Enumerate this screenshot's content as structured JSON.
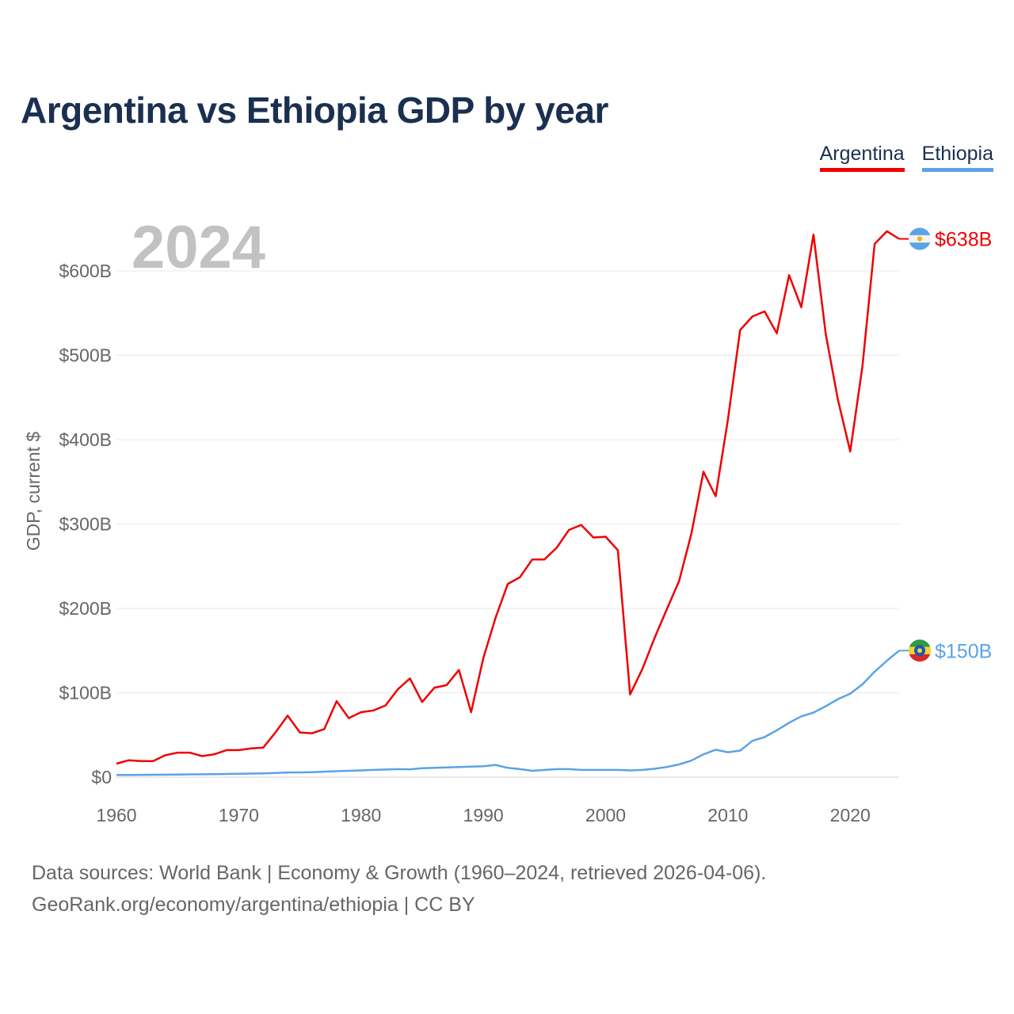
{
  "title": "Argentina vs Ethiopia GDP by year",
  "footer": {
    "line1": "Data sources: World Bank | Economy & Growth (1960–2024, retrieved 2026-04-06).",
    "line2": "GeoRank.org/economy/argentina/ethiopia | CC BY"
  },
  "chart_data": {
    "type": "line",
    "title": "Argentina vs Ethiopia GDP by year",
    "xlabel": "",
    "ylabel": "GDP, current $",
    "year_label": "2024",
    "xlim": [
      1960,
      2024
    ],
    "ylim": [
      0,
      600
    ],
    "y_unit": "billion USD",
    "x_ticks": [
      1960,
      1970,
      1980,
      1990,
      2000,
      2010,
      2020
    ],
    "x_tick_labels": [
      "1960",
      "1970",
      "1980",
      "1990",
      "2000",
      "2010",
      "2020"
    ],
    "y_ticks": [
      0,
      100,
      200,
      300,
      400,
      500,
      600
    ],
    "y_tick_labels": [
      "$0",
      "$100B",
      "$200B",
      "$300B",
      "$400B",
      "$500B",
      "$600B"
    ],
    "grid": true,
    "legend_position": "top-right",
    "x": [
      1960,
      1961,
      1962,
      1963,
      1964,
      1965,
      1966,
      1967,
      1968,
      1969,
      1970,
      1971,
      1972,
      1973,
      1974,
      1975,
      1976,
      1977,
      1978,
      1979,
      1980,
      1981,
      1982,
      1983,
      1984,
      1985,
      1986,
      1987,
      1988,
      1989,
      1990,
      1991,
      1992,
      1993,
      1994,
      1995,
      1996,
      1997,
      1998,
      1999,
      2000,
      2001,
      2002,
      2003,
      2004,
      2005,
      2006,
      2007,
      2008,
      2009,
      2010,
      2011,
      2012,
      2013,
      2014,
      2015,
      2016,
      2017,
      2018,
      2019,
      2020,
      2021,
      2022,
      2023,
      2024
    ],
    "series": [
      {
        "name": "Argentina",
        "color": "#ee0000",
        "end_label": "$638B",
        "flag": "argentina-flag",
        "values": [
          16,
          20,
          19,
          19,
          26,
          29,
          29,
          25,
          27,
          32,
          32,
          34,
          35,
          53,
          73,
          53,
          52,
          57,
          90,
          70,
          77,
          79,
          85,
          104,
          117,
          89,
          106,
          109,
          127,
          77,
          141,
          189,
          229,
          237,
          258,
          258,
          272,
          293,
          299,
          284,
          285,
          269,
          98,
          128,
          165,
          199,
          232,
          288,
          362,
          333,
          424,
          530,
          546,
          552,
          526,
          595,
          557,
          643,
          525,
          447,
          386,
          487,
          632,
          647,
          638
        ]
      },
      {
        "name": "Ethiopia",
        "color": "#5ba3e6",
        "end_label": "$150B",
        "flag": "ethiopia-flag",
        "values": [
          2.5,
          2.6,
          2.7,
          2.8,
          2.9,
          3.1,
          3.3,
          3.4,
          3.6,
          3.8,
          4.0,
          4.2,
          4.5,
          5.0,
          5.5,
          5.6,
          5.8,
          6.5,
          7.0,
          7.5,
          8.0,
          8.5,
          9.0,
          9.5,
          9.3,
          10.5,
          11.0,
          11.5,
          12.0,
          12.5,
          13.0,
          14.5,
          11.0,
          9.5,
          7.5,
          8.5,
          9.5,
          9.5,
          8.5,
          8.5,
          8.5,
          8.5,
          8.0,
          8.5,
          10.0,
          12.0,
          15.0,
          19.5,
          27.0,
          32.5,
          29.5,
          31.5,
          43.0,
          47.5,
          55.5,
          64.5,
          72.0,
          76.5,
          84.0,
          92.5,
          99.0,
          110.0,
          125.0,
          138.0,
          150.0
        ]
      }
    ]
  }
}
